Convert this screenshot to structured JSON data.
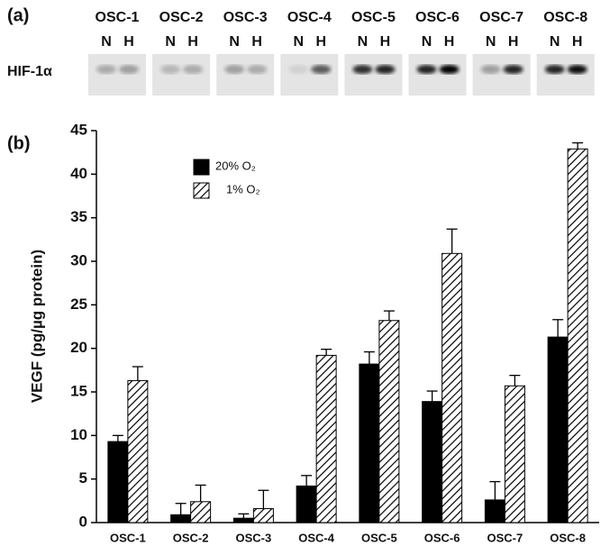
{
  "blot": {
    "panel_label": "(a)",
    "row_label": "HIF-1α",
    "lanes": [
      "OSC-1",
      "OSC-2",
      "OSC-3",
      "OSC-4",
      "OSC-5",
      "OSC-6",
      "OSC-7",
      "OSC-8"
    ],
    "conditions": [
      "N",
      "H"
    ]
  },
  "chart_data": {
    "type": "bar",
    "panel_label": "(b)",
    "y_label": "VEGF (pg/µg protein)",
    "categories": [
      "OSC-1",
      "OSC-2",
      "OSC-3",
      "OSC-4",
      "OSC-5",
      "OSC-6",
      "OSC-7",
      "OSC-8"
    ],
    "series": [
      {
        "name": "20% O₂",
        "color": "#000000",
        "hatch": false,
        "values": [
          9.3,
          0.9,
          0.5,
          4.2,
          18.2,
          13.9,
          2.6,
          21.3
        ],
        "errors": [
          0.7,
          1.3,
          0.5,
          1.2,
          1.4,
          1.2,
          2.1,
          2.0
        ]
      },
      {
        "name": "1% O₂",
        "color": "#000000",
        "hatch": true,
        "values": [
          16.3,
          2.4,
          1.6,
          19.2,
          23.2,
          30.9,
          15.7,
          42.9
        ],
        "errors": [
          1.6,
          1.9,
          2.1,
          0.7,
          1.1,
          2.8,
          1.2,
          0.7
        ]
      }
    ],
    "ylim": [
      0,
      45
    ],
    "yticks": [
      0,
      5,
      10,
      15,
      20,
      25,
      30,
      35,
      40,
      45
    ],
    "legend": "upper left",
    "grid": false
  }
}
